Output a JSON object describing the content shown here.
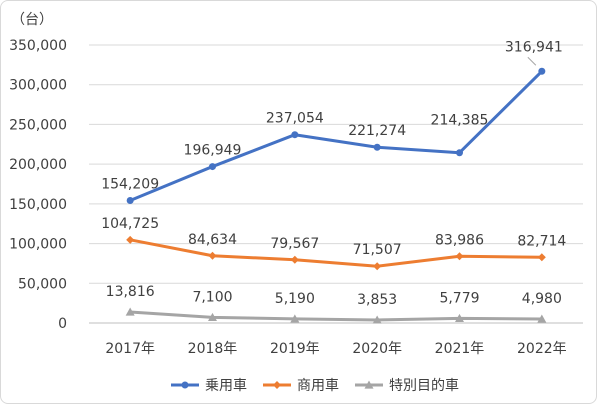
{
  "chart_data": {
    "type": "line",
    "unit_label": "（台）",
    "categories": [
      "2017年",
      "2018年",
      "2019年",
      "2020年",
      "2021年",
      "2022年"
    ],
    "ylim": [
      0,
      350000
    ],
    "yticks": [
      0,
      50000,
      100000,
      150000,
      200000,
      250000,
      300000,
      350000
    ],
    "ytick_labels": [
      "0",
      "50,000",
      "100,000",
      "150,000",
      "200,000",
      "250,000",
      "300,000",
      "350,000"
    ],
    "grid": true,
    "legend_position": "bottom",
    "series": [
      {
        "name": "乗用車",
        "color": "#4472c4",
        "marker": "circle",
        "values": [
          154209,
          196949,
          237054,
          221274,
          214385,
          316941
        ],
        "labels": [
          "154,209",
          "196,949",
          "237,054",
          "221,274",
          "214,385",
          "316,941"
        ]
      },
      {
        "name": "商用車",
        "color": "#ed7d31",
        "marker": "diamond",
        "values": [
          104725,
          84634,
          79567,
          71507,
          83986,
          82714
        ],
        "labels": [
          "104,725",
          "84,634",
          "79,567",
          "71,507",
          "83,986",
          "82,714"
        ]
      },
      {
        "name": "特別目的車",
        "color": "#a5a5a5",
        "marker": "triangle",
        "values": [
          13816,
          7100,
          5190,
          3853,
          5779,
          4980
        ],
        "labels": [
          "13,816",
          "7,100",
          "5,190",
          "3,853",
          "5,779",
          "4,980"
        ]
      }
    ]
  }
}
